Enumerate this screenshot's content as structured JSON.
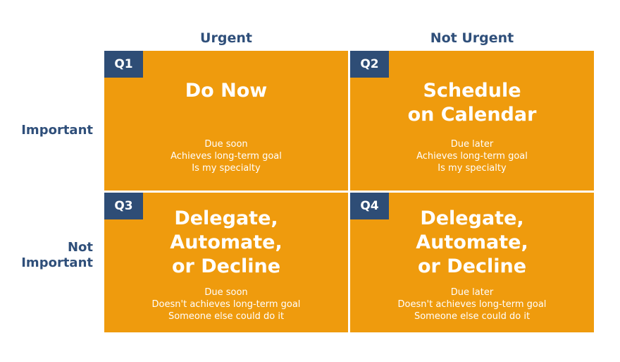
{
  "columns": {
    "left": "Urgent",
    "right": "Not Urgent"
  },
  "rows": {
    "top": [
      "Important"
    ],
    "bottom": [
      "Not",
      "Important"
    ]
  },
  "quadrants": [
    {
      "badge": "Q1",
      "title": [
        "Do Now"
      ],
      "details": [
        "Due soon",
        "Achieves long-term goal",
        "Is my specialty"
      ]
    },
    {
      "badge": "Q2",
      "title": [
        "Schedule",
        "on Calendar"
      ],
      "details": [
        "Due later",
        "Achieves long-term goal",
        "Is my specialty"
      ]
    },
    {
      "badge": "Q3",
      "title": [
        "Delegate,",
        "Automate,",
        "or Decline"
      ],
      "details": [
        "Due soon",
        "Doesn't achieves long-term goal",
        "Someone else could do it"
      ]
    },
    {
      "badge": "Q4",
      "title": [
        "Delegate,",
        "Automate,",
        "or Decline"
      ],
      "details": [
        "Due later",
        "Doesn't achieves long-term goal",
        "Someone else could do it"
      ]
    }
  ],
  "colors": {
    "quadrant": "#ef9b0d",
    "badge": "#2e4d76",
    "header_text": "#2f4f7a",
    "quadrant_text": "#ffffff"
  }
}
